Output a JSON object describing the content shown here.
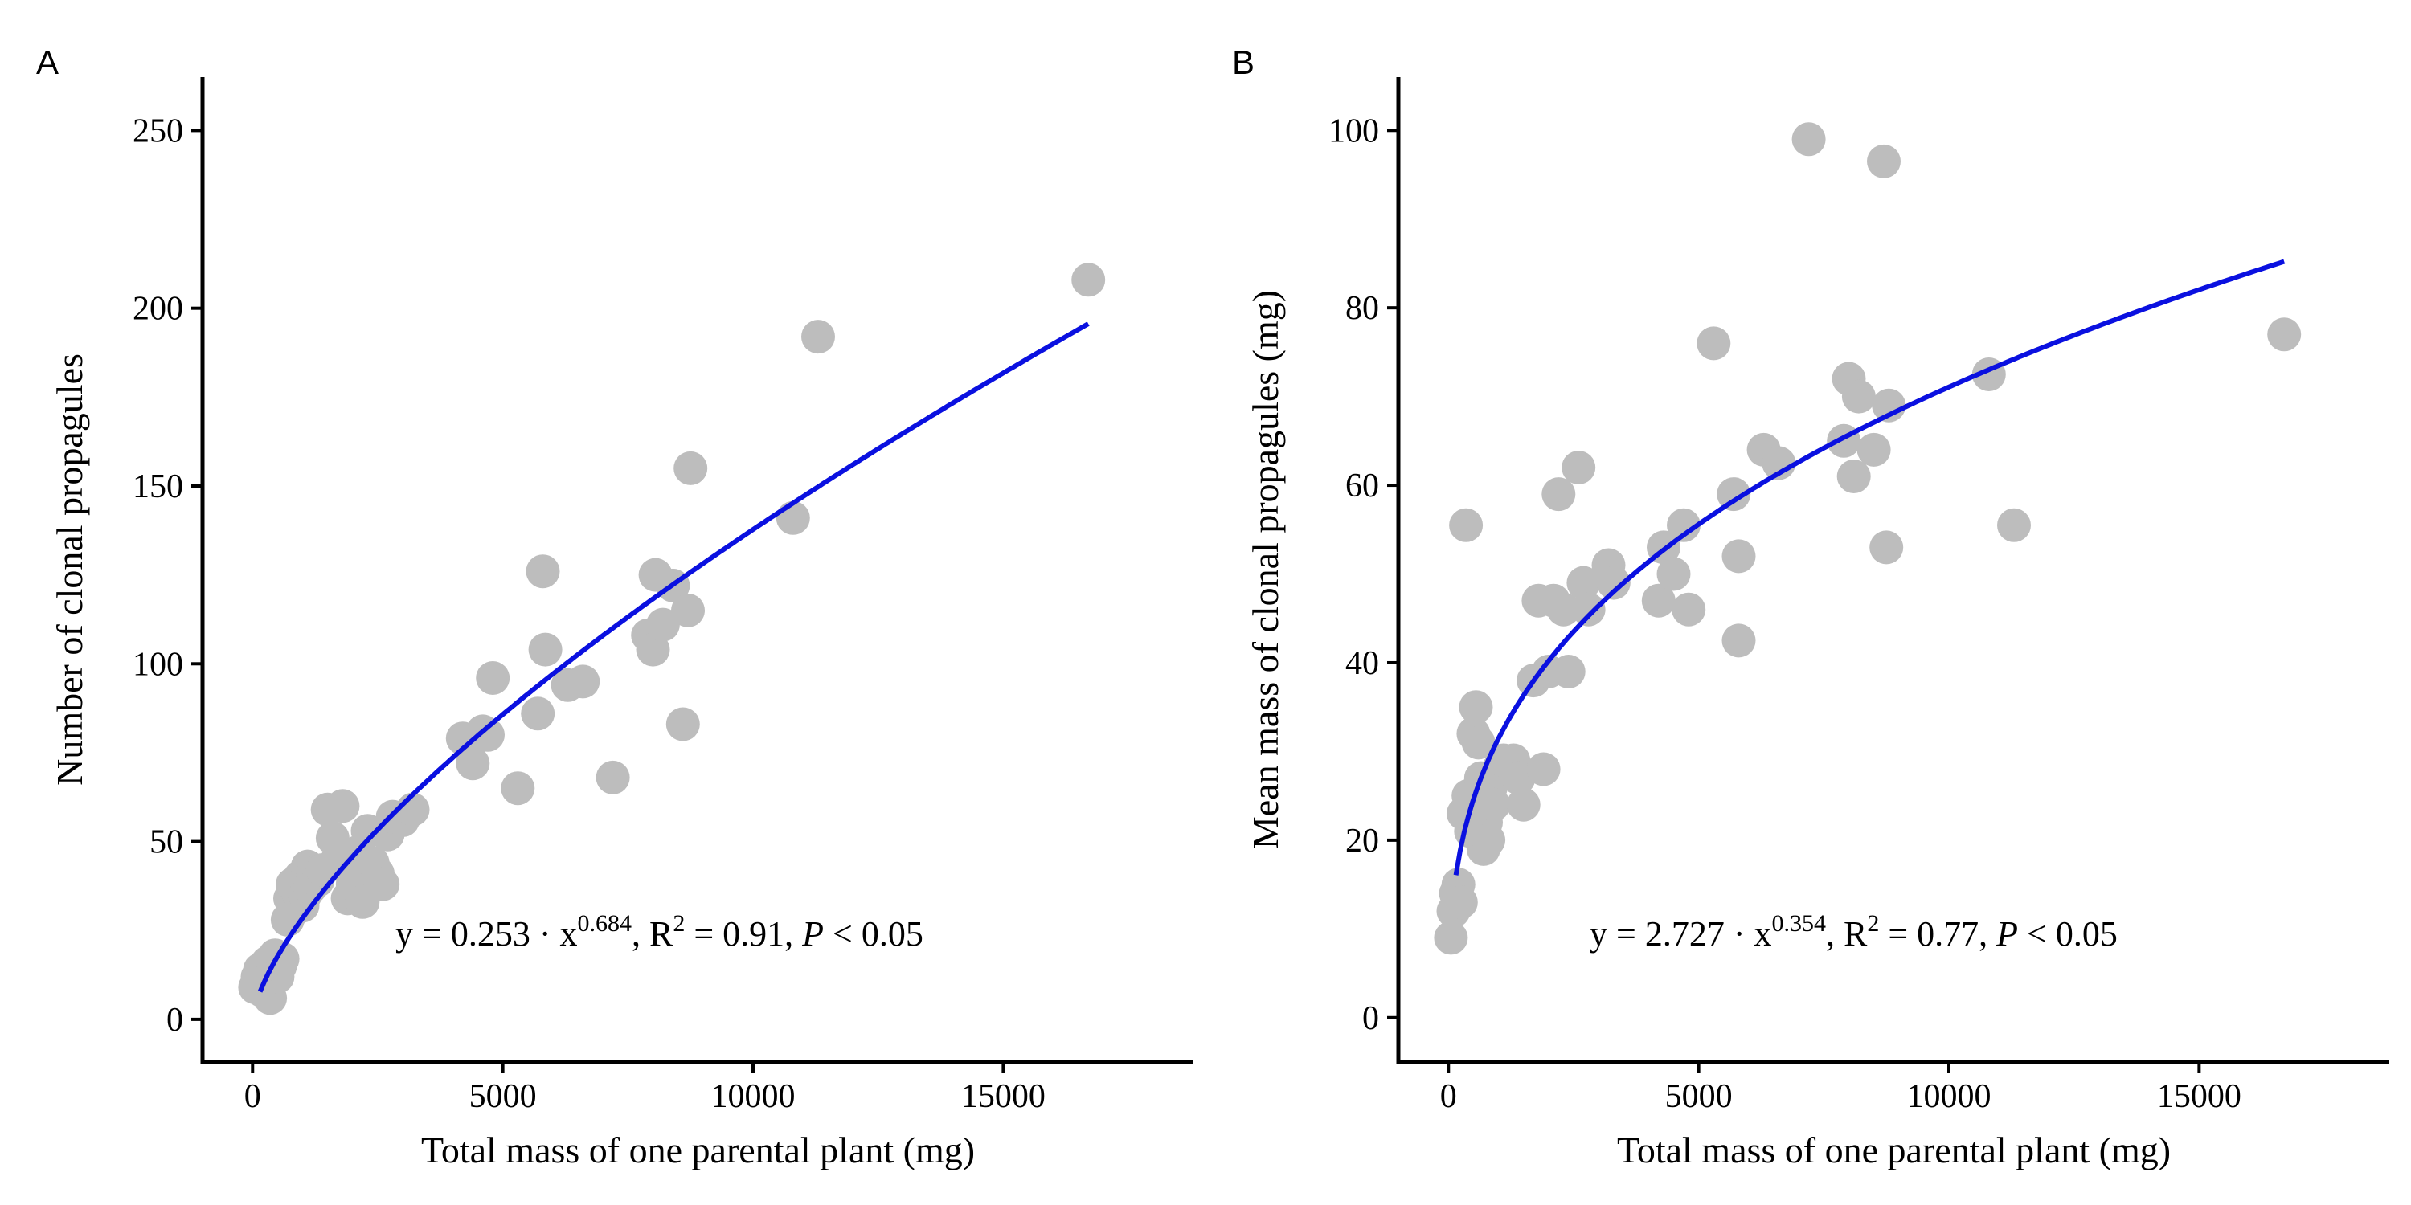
{
  "chart_data": [
    {
      "type": "scatter",
      "panel_label": "A",
      "xlabel": "Total mass of one parental plant (mg)",
      "ylabel": "Number of clonal propagules",
      "xlim": [
        -1000,
        18800
      ],
      "ylim": [
        -12,
        265
      ],
      "xticks": [
        0,
        5000,
        10000,
        15000
      ],
      "yticks": [
        0,
        50,
        100,
        150,
        200,
        250
      ],
      "grid": false,
      "point_color": "#bdbdbd",
      "line_color": "#0a10e0",
      "fit": {
        "type": "power",
        "a": 0.253,
        "b": 0.684,
        "x_range": [
          150,
          16700
        ]
      },
      "annotation": {
        "prefix": "y = 0.253 · x",
        "exponent": "0.684",
        "r2_label": ",  R",
        "r2_sup": "2",
        "r2_value": "  =  0.91,  ",
        "p_label": "P",
        "p_value": " <  0.05"
      },
      "points": [
        [
          50,
          9
        ],
        [
          100,
          12
        ],
        [
          150,
          14
        ],
        [
          200,
          8
        ],
        [
          250,
          11
        ],
        [
          300,
          16
        ],
        [
          350,
          6
        ],
        [
          400,
          13
        ],
        [
          450,
          18
        ],
        [
          500,
          12
        ],
        [
          550,
          15
        ],
        [
          600,
          17
        ],
        [
          700,
          28
        ],
        [
          750,
          34
        ],
        [
          800,
          38
        ],
        [
          850,
          31
        ],
        [
          900,
          36
        ],
        [
          950,
          40
        ],
        [
          1000,
          32
        ],
        [
          1050,
          35
        ],
        [
          1100,
          43
        ],
        [
          1150,
          37
        ],
        [
          1200,
          41
        ],
        [
          1300,
          39
        ],
        [
          1400,
          42
        ],
        [
          1500,
          59
        ],
        [
          1600,
          51
        ],
        [
          1700,
          45
        ],
        [
          1800,
          60
        ],
        [
          1900,
          34
        ],
        [
          2000,
          38
        ],
        [
          2100,
          47
        ],
        [
          2200,
          33
        ],
        [
          2300,
          53
        ],
        [
          2400,
          44
        ],
        [
          2500,
          41
        ],
        [
          2600,
          38
        ],
        [
          2700,
          52
        ],
        [
          2800,
          57
        ],
        [
          3000,
          56
        ],
        [
          3200,
          59
        ],
        [
          4200,
          79
        ],
        [
          4400,
          72
        ],
        [
          4600,
          81
        ],
        [
          4700,
          80
        ],
        [
          4800,
          96
        ],
        [
          5300,
          65
        ],
        [
          5700,
          86
        ],
        [
          5800,
          126
        ],
        [
          5850,
          104
        ],
        [
          6300,
          94
        ],
        [
          6600,
          95
        ],
        [
          7200,
          68
        ],
        [
          7900,
          108
        ],
        [
          8000,
          104
        ],
        [
          8050,
          125
        ],
        [
          8200,
          111
        ],
        [
          8400,
          122
        ],
        [
          8600,
          83
        ],
        [
          8700,
          115
        ],
        [
          8750,
          155
        ],
        [
          10800,
          141
        ],
        [
          11300,
          192
        ],
        [
          16700,
          208
        ]
      ]
    },
    {
      "type": "scatter",
      "panel_label": "B",
      "xlabel": "Total mass of one parental plant (mg)",
      "ylabel": "Mean mass of clonal propagules (mg)",
      "xlim": [
        -1000,
        18800
      ],
      "ylim": [
        -5,
        106
      ],
      "xticks": [
        0,
        5000,
        10000,
        15000
      ],
      "yticks": [
        0,
        20,
        40,
        60,
        80,
        100
      ],
      "grid": false,
      "point_color": "#bdbdbd",
      "line_color": "#0a10e0",
      "fit": {
        "type": "power",
        "a": 2.727,
        "b": 0.354,
        "x_range": [
          150,
          16700
        ]
      },
      "annotation": {
        "prefix": "y = 2.727 · x",
        "exponent": "0.354",
        "r2_label": ",  R",
        "r2_sup": "2",
        "r2_value": "  =  0.77,  ",
        "p_label": "P",
        "p_value": " <  0.05"
      },
      "points": [
        [
          50,
          9
        ],
        [
          100,
          12
        ],
        [
          150,
          14
        ],
        [
          200,
          15
        ],
        [
          250,
          13
        ],
        [
          300,
          23
        ],
        [
          350,
          55.5
        ],
        [
          400,
          25
        ],
        [
          450,
          21
        ],
        [
          500,
          32
        ],
        [
          550,
          35
        ],
        [
          600,
          31
        ],
        [
          650,
          27
        ],
        [
          700,
          19
        ],
        [
          750,
          22
        ],
        [
          800,
          20
        ],
        [
          850,
          26
        ],
        [
          900,
          24
        ],
        [
          1000,
          28
        ],
        [
          1100,
          29
        ],
        [
          1300,
          29
        ],
        [
          1400,
          27
        ],
        [
          1500,
          24
        ],
        [
          1700,
          38
        ],
        [
          1800,
          47
        ],
        [
          1900,
          28
        ],
        [
          2000,
          39
        ],
        [
          2100,
          47
        ],
        [
          2200,
          59
        ],
        [
          2300,
          46
        ],
        [
          2400,
          39
        ],
        [
          2600,
          62
        ],
        [
          2700,
          49
        ],
        [
          2800,
          46
        ],
        [
          3200,
          51
        ],
        [
          3300,
          49
        ],
        [
          4200,
          47
        ],
        [
          4300,
          53
        ],
        [
          4500,
          50
        ],
        [
          4700,
          55.5
        ],
        [
          4800,
          46
        ],
        [
          5300,
          76
        ],
        [
          5700,
          59
        ],
        [
          5800,
          52
        ],
        [
          5800,
          42.5
        ],
        [
          6300,
          64
        ],
        [
          6600,
          62.5
        ],
        [
          7200,
          99
        ],
        [
          7900,
          65
        ],
        [
          8000,
          72
        ],
        [
          8100,
          61
        ],
        [
          8200,
          70
        ],
        [
          8500,
          64
        ],
        [
          8700,
          96.5
        ],
        [
          8800,
          69
        ],
        [
          8750,
          53
        ],
        [
          10800,
          72.5
        ],
        [
          11300,
          55.5
        ],
        [
          16700,
          77
        ]
      ]
    }
  ]
}
